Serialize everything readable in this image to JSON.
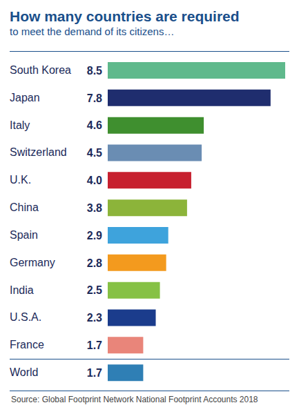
{
  "chart_data": {
    "type": "bar",
    "title": "How many countries are required",
    "subtitle": "to meet the demand of its citizens…",
    "annotations": [
      "Source: Global Footprint Network National Footprint Accounts 2018"
    ],
    "orientation": "horizontal",
    "categories": [
      "South Korea",
      "Japan",
      "Italy",
      "Switzerland",
      "U.K.",
      "China",
      "Spain",
      "Germany",
      "India",
      "U.S.A.",
      "France",
      "World"
    ],
    "values": [
      8.5,
      7.8,
      4.6,
      4.5,
      4.0,
      3.8,
      2.9,
      2.8,
      2.5,
      2.3,
      1.7,
      1.7
    ],
    "value_labels": [
      "8.5",
      "7.8",
      "4.6",
      "4.5",
      "4.0",
      "3.8",
      "2.9",
      "2.8",
      "2.5",
      "2.3",
      "1.7",
      "1.7"
    ],
    "colors": [
      "#5fb98c",
      "#1f2d6e",
      "#3f8f2f",
      "#6a8db3",
      "#c7202f",
      "#8cb43a",
      "#3ea3dc",
      "#f39a1e",
      "#86c145",
      "#1b3c8c",
      "#e9857a",
      "#2f7fb5"
    ],
    "xlim": [
      0,
      8.5
    ],
    "data_labels": true,
    "tick_labels": "y"
  }
}
